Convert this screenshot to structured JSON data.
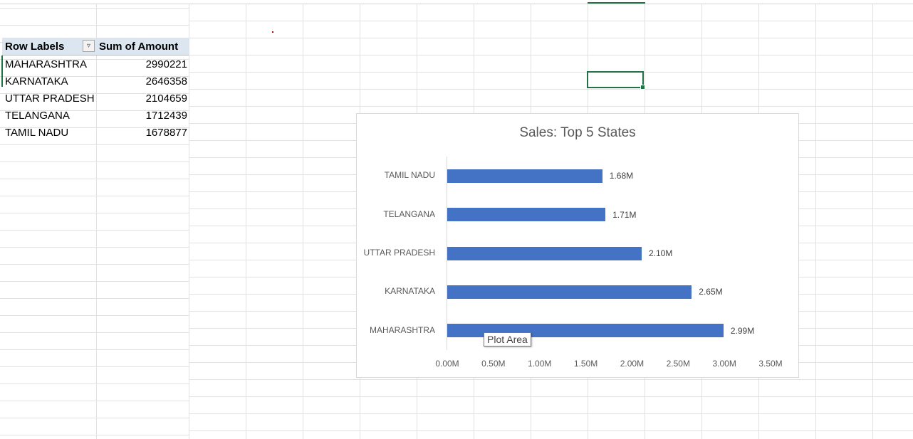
{
  "pivot": {
    "header_row_labels": "Row Labels",
    "header_sum": "Sum of Amount",
    "filter_icon": "filter-sort-icon",
    "rows": [
      {
        "name": "MAHARASHTRA",
        "value": "2990221"
      },
      {
        "name": "KARNATAKA",
        "value": "2646358"
      },
      {
        "name": "UTTAR PRADESH",
        "value": "2104659"
      },
      {
        "name": "TELANGANA",
        "value": "1712439"
      },
      {
        "name": "TAMIL NADU",
        "value": "1678877"
      }
    ]
  },
  "chart_data": {
    "type": "bar",
    "orientation": "horizontal",
    "title": "Sales: Top 5 States",
    "categories": [
      "TAMIL NADU",
      "TELANGANA",
      "UTTAR PRADESH",
      "KARNATAKA",
      "MAHARASHTRA"
    ],
    "values": [
      1678877,
      1712439,
      2104659,
      2646358,
      2990221
    ],
    "data_labels": [
      "1.68M",
      "1.71M",
      "2.10M",
      "2.65M",
      "2.99M"
    ],
    "xlim": [
      0,
      3500000
    ],
    "x_ticks": [
      "0.00M",
      "0.50M",
      "1.00M",
      "1.50M",
      "2.00M",
      "2.50M",
      "3.00M",
      "3.50M"
    ],
    "bar_color": "#4472c4",
    "grid": false,
    "legend": "none"
  },
  "tooltip": "Plot Area",
  "colors": {
    "selection": "#217346",
    "pivot_header_bg": "#dce6f1"
  }
}
